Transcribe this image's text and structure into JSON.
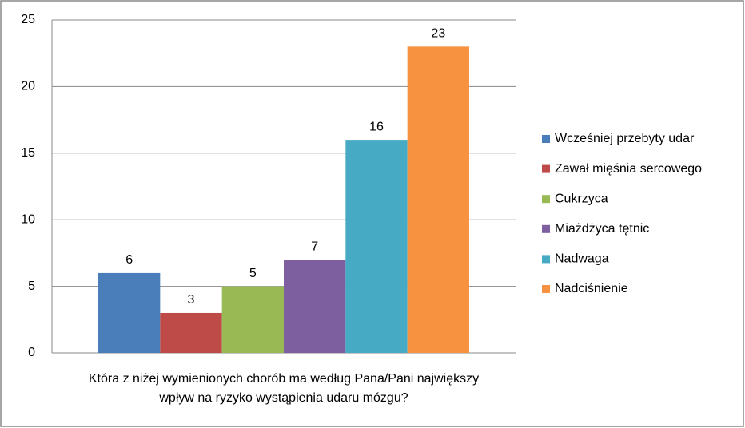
{
  "chart_data": {
    "type": "bar",
    "x_label": "Która z niżej wymienionych chorób ma według Pana/Pani największy wpływ na ryzyko wystąpienia udaru mózgu?",
    "categories": [
      null
    ],
    "series": [
      {
        "name": "Wcześniej przebyty udar",
        "color": "#4a7ebb",
        "values": [
          6
        ]
      },
      {
        "name": "Zawał mięśnia sercowego",
        "color": "#be4b48",
        "values": [
          3
        ]
      },
      {
        "name": "Cukrzyca",
        "color": "#98b954",
        "values": [
          5
        ]
      },
      {
        "name": "Miażdżyca tętnic",
        "color": "#7d5fa0",
        "values": [
          7
        ]
      },
      {
        "name": "Nadwaga",
        "color": "#46aac5",
        "values": [
          16
        ]
      },
      {
        "name": "Nadciśnienie",
        "color": "#f69240",
        "values": [
          23
        ]
      }
    ],
    "ylim": [
      0,
      25
    ],
    "yticks": [
      0,
      5,
      10,
      15,
      20,
      25
    ],
    "grid": true,
    "legend": "right"
  }
}
